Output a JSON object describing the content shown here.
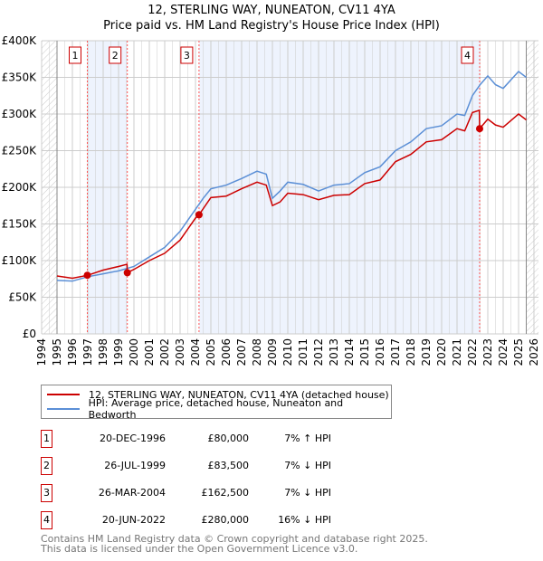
{
  "chart_data": {
    "type": "line",
    "title": "12, STERLING WAY, NUNEATON, CV11 4YA",
    "subtitle": "Price paid vs. HM Land Registry's House Price Index (HPI)",
    "xlim": [
      1994,
      2026
    ],
    "ylim": [
      0,
      400000
    ],
    "x_ticks": [
      "1994",
      "1995",
      "1996",
      "1997",
      "1998",
      "1999",
      "2000",
      "2001",
      "2002",
      "2003",
      "2004",
      "2005",
      "2006",
      "2007",
      "2008",
      "2009",
      "2010",
      "2011",
      "2012",
      "2013",
      "2014",
      "2015",
      "2016",
      "2017",
      "2018",
      "2019",
      "2020",
      "2021",
      "2022",
      "2023",
      "2024",
      "2025",
      "2026"
    ],
    "y_ticks": [
      {
        "v": 0,
        "label": "£0"
      },
      {
        "v": 50000,
        "label": "£50K"
      },
      {
        "v": 100000,
        "label": "£100K"
      },
      {
        "v": 150000,
        "label": "£150K"
      },
      {
        "v": 200000,
        "label": "£200K"
      },
      {
        "v": 250000,
        "label": "£250K"
      },
      {
        "v": 300000,
        "label": "£300K"
      },
      {
        "v": 350000,
        "label": "£350K"
      },
      {
        "v": 400000,
        "label": "£400K"
      }
    ],
    "grid": true,
    "legend_position": "below",
    "series": [
      {
        "name": "12, STERLING WAY, NUNEATON, CV11 4YA (detached house)",
        "color": "#cc0000",
        "x": [
          1995,
          1996,
          1997,
          1998,
          1999,
          1999.55,
          1999.57,
          2000,
          2001,
          2002,
          2003,
          2004,
          2004.23,
          2005,
          2006,
          2007,
          2008,
          2008.6,
          2009,
          2009.5,
          2010,
          2011,
          2012,
          2013,
          2014,
          2015,
          2016,
          2017,
          2018,
          2019,
          2020,
          2021,
          2021.5,
          2022,
          2022.45,
          2022.47,
          2023,
          2023.5,
          2024,
          2025,
          2025.5
        ],
        "y": [
          79000,
          76000,
          80000,
          87000,
          92000,
          95000,
          83500,
          88000,
          100000,
          110000,
          128000,
          158000,
          162500,
          186000,
          188000,
          198000,
          207000,
          203000,
          175000,
          180000,
          192000,
          190000,
          183000,
          189000,
          190000,
          205000,
          210000,
          235000,
          245000,
          262000,
          265000,
          280000,
          277000,
          302000,
          305000,
          280000,
          293000,
          285000,
          282000,
          300000,
          292000
        ]
      },
      {
        "name": "HPI: Average price, detached house, Nuneaton and Bedworth",
        "color": "#5b8fd6",
        "x": [
          1995,
          1996,
          1997,
          1998,
          1999,
          2000,
          2001,
          2002,
          2003,
          2004,
          2004.5,
          2005,
          2006,
          2007,
          2008,
          2008.6,
          2009,
          2009.5,
          2010,
          2011,
          2012,
          2013,
          2014,
          2015,
          2016,
          2017,
          2018,
          2019,
          2020,
          2021,
          2021.5,
          2022,
          2022.5,
          2023,
          2023.5,
          2024,
          2025,
          2025.5
        ],
        "y": [
          73000,
          72000,
          78000,
          82000,
          86000,
          92000,
          105000,
          118000,
          140000,
          170000,
          185000,
          198000,
          203000,
          212000,
          222000,
          218000,
          185000,
          195000,
          207000,
          204000,
          195000,
          203000,
          205000,
          220000,
          228000,
          250000,
          262000,
          280000,
          284000,
          300000,
          298000,
          325000,
          340000,
          352000,
          340000,
          335000,
          358000,
          350000
        ]
      }
    ],
    "sales": [
      {
        "id": "1",
        "x": 1996.97,
        "price": 80000,
        "date": "20-DEC-1996",
        "price_label": "£80,000",
        "hpi": "7% ↑ HPI"
      },
      {
        "id": "2",
        "x": 1999.57,
        "price": 83500,
        "date": "26-JUL-1999",
        "price_label": "£83,500",
        "hpi": "7% ↓ HPI"
      },
      {
        "id": "3",
        "x": 2004.23,
        "price": 162500,
        "date": "26-MAR-2004",
        "price_label": "£162,500",
        "hpi": "7% ↓ HPI"
      },
      {
        "id": "4",
        "x": 2022.47,
        "price": 280000,
        "date": "20-JUN-2022",
        "price_label": "£280,000",
        "hpi": "16% ↓ HPI"
      }
    ]
  },
  "footer": {
    "line1": "Contains HM Land Registry data © Crown copyright and database right 2025.",
    "line2": "This data is licensed under the Open Government Licence v3.0."
  }
}
